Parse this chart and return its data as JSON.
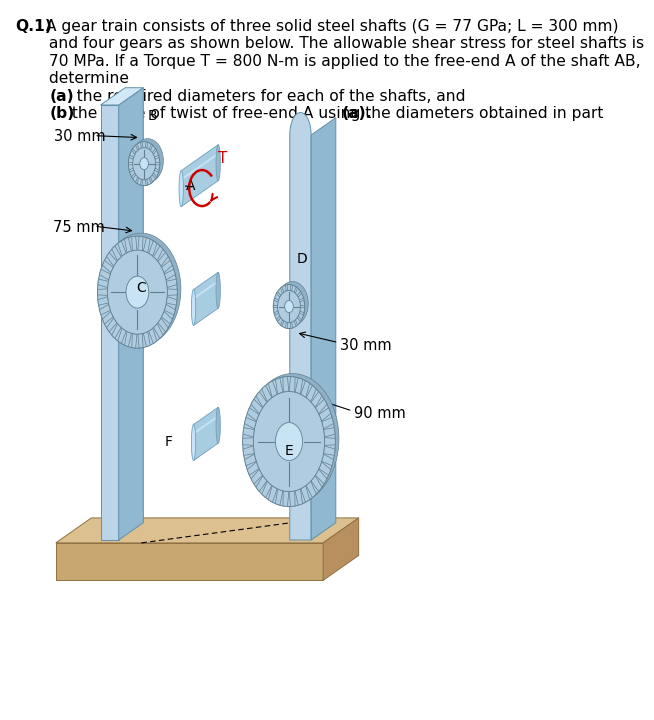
{
  "bg_color": "#ffffff",
  "text_color": "#000000",
  "torque_color": "#cc0000",
  "shaft_color_main": "#a8cce0",
  "shaft_color_highlight": "#d0ecff",
  "shaft_color_dark": "#70a0be",
  "gear_color_main": "#b0d0e8",
  "gear_color_tooth": "#98bcd8",
  "gear_color_edge": "#6090a8",
  "gear_color_hub": "#c8e4f4",
  "plate_color_front": "#bcd4e8",
  "plate_color_side": "#90b8d0",
  "plate_color_top": "#d0e8f8",
  "base_color_front": "#c8a870",
  "base_color_top": "#dcc090",
  "base_color_side": "#b89060",
  "line1": "Q.1) A gear train consists of three solid steel shafts (G = 77 GPa; L = 300 mm)",
  "line2": "        and four gears as shown below. The allowable shear stress for steel shafts is",
  "line3": "        70 MPa. If a Torque T = 800 N-m is applied to the free-end A of the shaft AB,",
  "line4": "        determine",
  "line5": "        (a)  the required diameters for each of the shafts, and",
  "line6": "        (b)  the angle of twist of free-end A using the diameters obtained in part (a).",
  "q_bold": "Q.1)",
  "a_bold": "(a)",
  "b_bold": "(b)",
  "line1_rest": " A gear train consists of three solid steel shafts (G = 77 GPa; L = 300 mm)",
  "line2_rest": " and four gears as shown below. The allowable shear stress for steel shafts is",
  "line3_rest": " 70 MPa. If a Torque T = 800 N-m is applied to the free-end A of the shaft AB,",
  "line4_rest": " determine",
  "line5_rest": "  the required diameters for each of the shafts, and",
  "line6_rest": "  the angle of twist of free-end A using the diameters obtained in part (a).",
  "bold_end_a": "(a)",
  "bold_end_b": "(b)"
}
